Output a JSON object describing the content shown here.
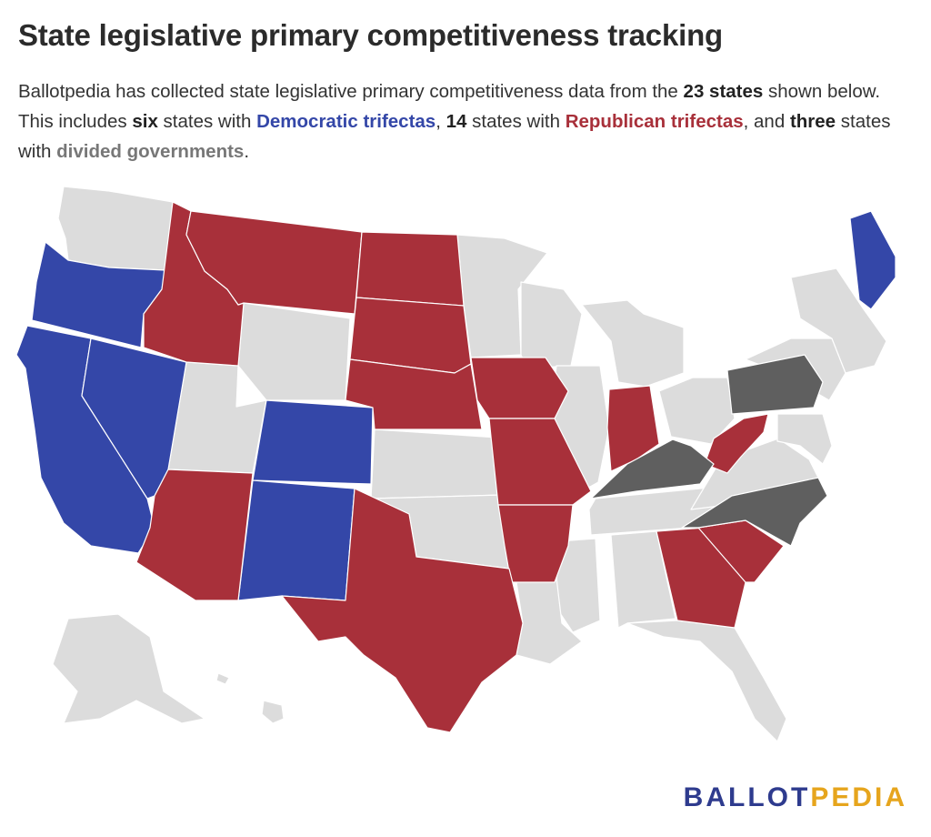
{
  "title": "State legislative primary competitiveness tracking",
  "subtitle": {
    "p1": "Ballotpedia has collected state legislative primary competitiveness data from the ",
    "b1": "23 states",
    "p2": " shown below. This includes ",
    "b2": "six",
    "p3": " states with ",
    "dem": "Democratic trifectas",
    "p4": ", ",
    "b3": "14",
    "p5": " states with ",
    "rep": "Republican trifectas",
    "p6": ", and ",
    "b4": "three",
    "p7": " states with ",
    "div": "divided governments",
    "p8": "."
  },
  "colors": {
    "democratic": "#3447a8",
    "republican": "#a8303a",
    "divided": "#5f5f5f",
    "not_tracked": "#dcdcdc"
  },
  "states": {
    "democratic": [
      "WA-excluded",
      "OR",
      "CA",
      "NV",
      "CO",
      "NM",
      "ME"
    ],
    "republican": [
      "ID",
      "MT",
      "ND",
      "SD",
      "NE",
      "IA",
      "MO",
      "AR",
      "TX",
      "AZ",
      "IN",
      "WV",
      "GA",
      "SC"
    ],
    "divided": [
      "PA",
      "KY",
      "NC"
    ]
  },
  "logo": {
    "part1": "BALLOT",
    "part2": "PEDIA"
  }
}
